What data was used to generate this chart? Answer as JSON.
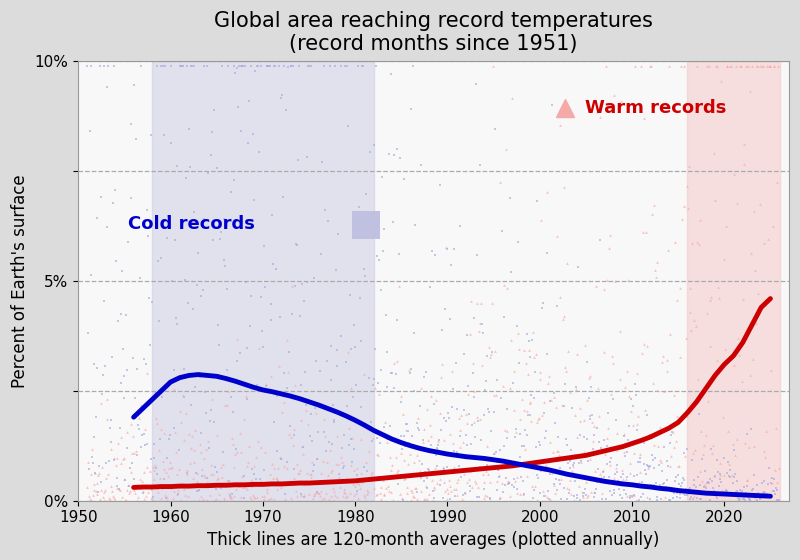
{
  "title": "Global area reaching record temperatures\n(record months since 1951)",
  "xlabel": "Thick lines are 120-month averages (plotted annually)",
  "ylabel": "Percent of Earth's surface",
  "xlim": [
    1950,
    2027
  ],
  "ylim": [
    0,
    0.1
  ],
  "yticks": [
    0.0,
    0.025,
    0.05,
    0.075,
    0.1
  ],
  "ytick_labels": [
    "0%",
    "",
    "5%",
    "",
    "10%"
  ],
  "xticks": [
    1950,
    1960,
    1970,
    1980,
    1990,
    2000,
    2010,
    2020
  ],
  "bg_color": "#dcdcdc",
  "plot_bg_color": "#f8f8f8",
  "warm_scatter_color": "#f5aaaa",
  "cold_scatter_color": "#aaaadd",
  "warm_line_color": "#cc0000",
  "cold_line_color": "#0000cc",
  "warm_fill_color": "#f5c0c0",
  "cold_fill_color": "#c0c0e0",
  "warm_label": "Warm records",
  "cold_label": "Cold records",
  "seed": 42,
  "title_fontsize": 15,
  "label_fontsize": 12,
  "tick_fontsize": 11,
  "cold_fill_xstart": 1958,
  "cold_fill_xend": 1982,
  "warm_fill_xstart": 2016,
  "warm_fill_xend": 2026
}
